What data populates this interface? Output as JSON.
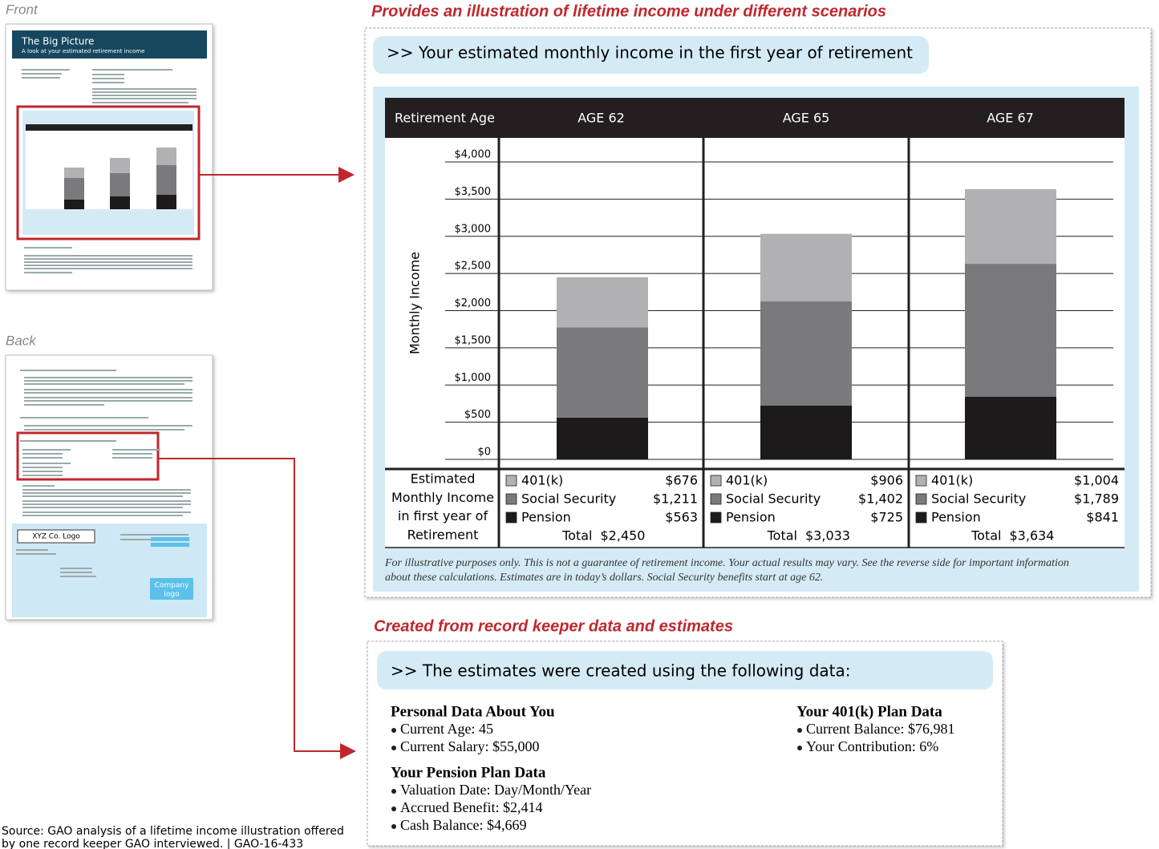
{
  "front_label": "Front",
  "back_label": "Back",
  "front_thumbnail": {
    "title": "The Big Picture",
    "subtitle": "A look at your estimated retirement income"
  },
  "back_thumbnail": {
    "logo": "XYZ Co. Logo",
    "company_logo": [
      "Company",
      "logo"
    ]
  },
  "callouts": [
    "Provides an illustration of lifetime income under different scenarios",
    "Created from record keeper data and estimates"
  ],
  "chart_panel": {
    "heading": ">> Your estimated monthly income in the first year of retirement",
    "footnote": [
      "For illustrative purposes only. This is not a guarantee of retirement income. Your actual results may vary. See the reverse side for important information",
      "about these calculations. Estimates are in today’s dollars. Social Security benefits start at age 62."
    ]
  },
  "chart_data": {
    "type": "bar",
    "stacked": true,
    "category_header": "Retirement Age",
    "categories": [
      "AGE 62",
      "AGE 65",
      "AGE 67"
    ],
    "series": [
      {
        "name": "401(k)",
        "color": "#b1b1b3",
        "values": [
          676,
          906,
          1004
        ],
        "value_labels": [
          "$676",
          "$906",
          "$1,004"
        ]
      },
      {
        "name": "Social Security",
        "color": "#7a7a7c",
        "values": [
          1211,
          1402,
          1789
        ],
        "value_labels": [
          "$1,211",
          "$1,402",
          "$1,789"
        ]
      },
      {
        "name": "Pension",
        "color": "#1c1a1a",
        "values": [
          563,
          725,
          841
        ],
        "value_labels": [
          "$563",
          "$725",
          "$841"
        ]
      }
    ],
    "ylabel": "Monthly Income",
    "ylim": [
      0,
      4000
    ],
    "yticks": [
      {
        "value": 0,
        "label": "$0"
      },
      {
        "value": 500,
        "label": "$500"
      },
      {
        "value": 1000,
        "label": "$1,000"
      },
      {
        "value": 1500,
        "label": "$1,500"
      },
      {
        "value": 2000,
        "label": "$2,000"
      },
      {
        "value": 2500,
        "label": "$2,500"
      },
      {
        "value": 3000,
        "label": "$3,000"
      },
      {
        "value": 3500,
        "label": "$3,500"
      },
      {
        "value": 4000,
        "label": "$4,000"
      }
    ],
    "grid": true,
    "row_label": [
      "Estimated",
      "Monthly Income",
      "in first year of",
      "Retirement"
    ],
    "total_label": "Total",
    "totals": [
      2450,
      3033,
      3634
    ],
    "total_labels": [
      "$2,450",
      "$3,033",
      "$3,634"
    ]
  },
  "data_section": {
    "heading": ">> The estimates were created using the following data:",
    "groups": [
      {
        "title": "Personal Data About You",
        "items": [
          "Current Age: 45",
          "Current Salary: $55,000"
        ]
      },
      {
        "title": "Your Pension Plan Data",
        "items": [
          "Valuation Date: Day/Month/Year",
          "Accrued Benefit: $2,414",
          "Cash Balance: $4,669"
        ]
      },
      {
        "title": "Your 401(k) Plan Data",
        "items": [
          "Current Balance: $76,981",
          "Your Contribution: 6%"
        ]
      }
    ]
  },
  "source": [
    "Source: GAO analysis of a lifetime income illustration offered",
    "by one record keeper GAO interviewed.  |  GAO-16-433"
  ]
}
